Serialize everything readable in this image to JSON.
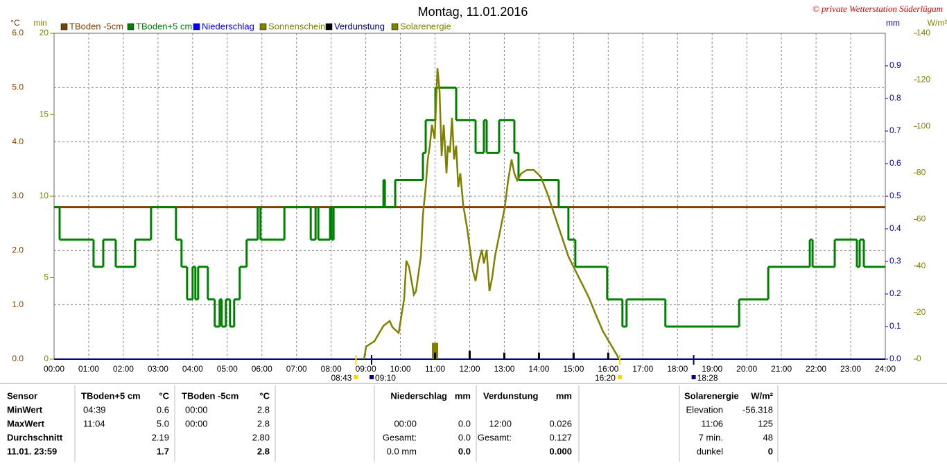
{
  "chart_data": {
    "type": "line",
    "title": "Montag, 11.01.2016",
    "copyright": "© private Wetterstation Süderlügum",
    "y_unit": "°C",
    "y2_unit": "min",
    "y3_unit": "mm",
    "y4_unit": "W/m²",
    "xlim": [
      0,
      24
    ],
    "xticks": [
      {
        "value": 0,
        "label": "00:00"
      },
      {
        "value": 1,
        "label": "01:00"
      },
      {
        "value": 2,
        "label": "02:00"
      },
      {
        "value": 3,
        "label": "03:00"
      },
      {
        "value": 4,
        "label": "04:00"
      },
      {
        "value": 5,
        "label": "05:00"
      },
      {
        "value": 6,
        "label": "06:00"
      },
      {
        "value": 7,
        "label": "07:00"
      },
      {
        "value": 8,
        "label": "08:00"
      },
      {
        "value": 9,
        "label": "09:00"
      },
      {
        "value": 10,
        "label": "10:00"
      },
      {
        "value": 11,
        "label": "11:00"
      },
      {
        "value": 12,
        "label": "12:00"
      },
      {
        "value": 13,
        "label": "13:00"
      },
      {
        "value": 14,
        "label": "14:00"
      },
      {
        "value": 15,
        "label": "15:00"
      },
      {
        "value": 16,
        "label": "16:00"
      },
      {
        "value": 17,
        "label": "17:00"
      },
      {
        "value": 18,
        "label": "18:00"
      },
      {
        "value": 19,
        "label": "19:00"
      },
      {
        "value": 20,
        "label": "20:00"
      },
      {
        "value": 21,
        "label": "21:00"
      },
      {
        "value": 22,
        "label": "22:00"
      },
      {
        "value": 23,
        "label": "23:00"
      },
      {
        "value": 24,
        "label": "24:00"
      }
    ],
    "ylim": [
      0,
      6
    ],
    "yticks": [
      {
        "value": 0,
        "label": "0.0"
      },
      {
        "value": 1,
        "label": "1.0"
      },
      {
        "value": 2,
        "label": "2.0"
      },
      {
        "value": 3,
        "label": "3.0"
      },
      {
        "value": 4,
        "label": "4.0"
      },
      {
        "value": 5,
        "label": "5.0"
      },
      {
        "value": 6,
        "label": "6.0"
      }
    ],
    "y2lim": [
      0,
      20
    ],
    "y2ticks": [
      0,
      5,
      10,
      15,
      20
    ],
    "y3lim": [
      0,
      1.0
    ],
    "y3ticks": [
      {
        "value": 0,
        "label": "0.0"
      },
      {
        "value": 0.1,
        "label": "0.1"
      },
      {
        "value": 0.2,
        "label": "0.2"
      },
      {
        "value": 0.3,
        "label": "0.3"
      },
      {
        "value": 0.4,
        "label": "0.4"
      },
      {
        "value": 0.5,
        "label": "0.5"
      },
      {
        "value": 0.6,
        "label": "0.6"
      },
      {
        "value": 0.7,
        "label": "0.7"
      },
      {
        "value": 0.8,
        "label": "0.8"
      },
      {
        "value": 0.9,
        "label": "0.9"
      }
    ],
    "y4lim": [
      0,
      140
    ],
    "y4ticks": [
      0,
      20,
      40,
      60,
      80,
      100,
      120,
      140
    ],
    "grid": true,
    "series": [
      {
        "name": "TBoden -5cm",
        "color": "#804000",
        "style": "step",
        "axis": "y",
        "x": [
          0,
          24
        ],
        "values": [
          2.8,
          2.8
        ]
      },
      {
        "name": "TBoden+5 cm",
        "color": "#008000",
        "style": "step",
        "axis": "y",
        "x": [
          0,
          0.16,
          1.14,
          1.42,
          1.78,
          2.34,
          2.8,
          3.52,
          3.68,
          3.84,
          4.0,
          4.08,
          4.16,
          4.44,
          4.64,
          4.78,
          4.84,
          4.96,
          5.08,
          5.2,
          5.36,
          5.56,
          5.88,
          5.96,
          6.65,
          7.41,
          7.55,
          7.63,
          7.97,
          8.01,
          8.07,
          9.51,
          9.55,
          9.85,
          10.65,
          10.73,
          11.01,
          11.61,
          12.17,
          12.41,
          12.49,
          12.85,
          13.29,
          13.41,
          14.57,
          14.85,
          15.05,
          15.97,
          16.41,
          16.53,
          17.65,
          19.78,
          20.62,
          21.82,
          21.9,
          22.54,
          23.18,
          23.26,
          23.38,
          24.0
        ],
        "values": [
          2.8,
          2.2,
          1.7,
          2.2,
          1.7,
          2.2,
          2.8,
          2.2,
          1.7,
          1.1,
          1.7,
          1.1,
          1.7,
          1.1,
          0.6,
          1.1,
          0.6,
          1.1,
          0.6,
          1.1,
          1.7,
          2.2,
          2.8,
          2.2,
          2.8,
          2.2,
          2.8,
          2.2,
          2.8,
          2.2,
          2.8,
          3.3,
          2.8,
          3.3,
          3.8,
          4.4,
          5.0,
          4.4,
          3.8,
          4.4,
          3.8,
          4.4,
          3.8,
          3.3,
          2.8,
          2.2,
          1.7,
          1.1,
          0.6,
          1.1,
          0.6,
          1.1,
          1.7,
          2.2,
          1.7,
          2.2,
          1.7,
          2.2,
          1.7,
          1.7
        ]
      },
      {
        "name": "Niederschlag",
        "color": "#0000ff",
        "style": "bar",
        "axis": "y3",
        "x": [],
        "values": []
      },
      {
        "name": "Sonnenschein",
        "color": "#808000",
        "style": "bar",
        "axis": "y2",
        "x": [
          11.0
        ],
        "values": [
          1
        ]
      },
      {
        "name": "Verdunstung",
        "color": "#000000",
        "style": "bar",
        "axis": "y3",
        "x": [
          11,
          12,
          13,
          14,
          15,
          16
        ],
        "values": [
          0.02,
          0.026,
          0.02,
          0.02,
          0.02,
          0.02
        ]
      },
      {
        "name": "Solarenergie",
        "color": "#808000",
        "style": "line",
        "axis": "y4",
        "x": [
          8.95,
          9.01,
          9.25,
          9.51,
          9.69,
          9.77,
          9.95,
          10.11,
          10.17,
          10.25,
          10.39,
          10.45,
          10.59,
          10.65,
          10.73,
          10.79,
          10.85,
          10.91,
          10.99,
          11.07,
          11.13,
          11.19,
          11.25,
          11.33,
          11.37,
          11.43,
          11.49,
          11.55,
          11.61,
          11.67,
          11.73,
          11.81,
          11.93,
          12.01,
          12.09,
          12.17,
          12.25,
          12.35,
          12.41,
          12.49,
          12.57,
          12.65,
          12.73,
          12.81,
          12.89,
          13.01,
          13.11,
          13.21,
          13.29,
          13.37,
          13.49,
          13.65,
          13.85,
          14.05,
          14.25,
          14.45,
          14.65,
          14.85,
          15.05,
          15.25,
          15.45,
          15.65,
          15.85,
          16.05,
          16.25,
          16.31
        ],
        "values": [
          0,
          5.4,
          7.7,
          14.3,
          16.4,
          13.7,
          11.3,
          26.2,
          42.3,
          39.6,
          27.7,
          29.2,
          44.1,
          62,
          73.9,
          85.8,
          91.7,
          100.7,
          94.7,
          125,
          115.3,
          87.3,
          100.7,
          79.8,
          91.7,
          88.8,
          103.7,
          85.8,
          91.7,
          73.9,
          79.8,
          66.4,
          55.9,
          47,
          38.1,
          33.6,
          41.1,
          47,
          41.1,
          47,
          29.2,
          35.1,
          44.1,
          50,
          56,
          64.9,
          76.8,
          85.8,
          79.8,
          76.8,
          79.8,
          81.3,
          81.3,
          78.4,
          70.9,
          61.9,
          53,
          44.1,
          38.1,
          32.2,
          26.2,
          18.8,
          11.9,
          6.9,
          1.8,
          0
        ]
      }
    ],
    "annotations": [
      {
        "x": 8.717,
        "label": "08:43",
        "color": "#ffd700"
      },
      {
        "x": 9.167,
        "label": "09:10",
        "color": "#000080"
      },
      {
        "x": 16.333,
        "label": "16:20",
        "color": "#ffd700"
      },
      {
        "x": 18.467,
        "label": "18:28",
        "color": "#000080"
      }
    ]
  },
  "table": {
    "rows": [
      [
        "Sensor",
        "TBoden+5 cm",
        "°C",
        "TBoden -5cm",
        "°C",
        "Niederschlag",
        "mm",
        "Verdunstung",
        "mm",
        "Solarenergie",
        "W/m²"
      ],
      [
        "MinWert",
        "04:39",
        "0.6",
        "00:00",
        "2.8",
        null,
        null,
        null,
        null,
        "Elevation",
        "-56.318"
      ],
      [
        "MaxWert",
        "11:04",
        "5.0",
        "00:00",
        "2.8",
        "00:00",
        "0.0",
        "12:00",
        "0.026",
        "11:06",
        "125"
      ],
      [
        "Durchschnitt",
        null,
        "2.19",
        null,
        "2.80",
        "Gesamt:",
        "0.0",
        "Gesamt:",
        "0.127",
        "7 min.",
        "48"
      ],
      [
        "11.01. 23:59",
        null,
        "1.7",
        null,
        "2.8",
        "0.0 mm",
        "0.0",
        null,
        "0.000",
        "dunkel",
        "0"
      ]
    ]
  }
}
